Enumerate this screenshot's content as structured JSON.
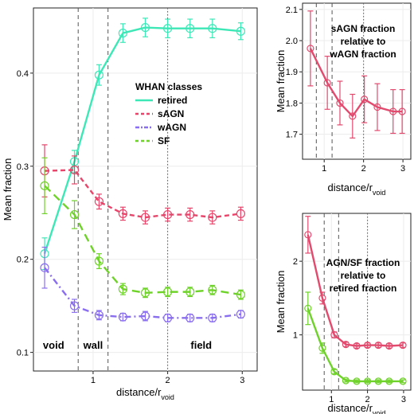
{
  "chart_data": [
    {
      "type": "line",
      "panel": "main",
      "xlabel": "distance/r",
      "xlabel_sub": "void",
      "ylabel": "Mean fraction",
      "xlim": [
        0.2,
        3.2
      ],
      "ylim": [
        0.08,
        0.47
      ],
      "xticks": [
        1,
        2,
        3
      ],
      "yticks": [
        0.1,
        0.2,
        0.3,
        0.4
      ],
      "xtick_labels": [
        "1",
        "2",
        "3"
      ],
      "ytick_labels": [
        "0.1",
        "0.2",
        "0.3",
        "0.4"
      ],
      "vlines": [
        {
          "x": 0.8,
          "style": "dashed"
        },
        {
          "x": 1.2,
          "style": "dashed"
        },
        {
          "x": 2.0,
          "style": "dotted"
        }
      ],
      "region_labels": [
        {
          "text": "void",
          "x": 0.47
        },
        {
          "text": "wall",
          "x": 1.0
        },
        {
          "text": "field",
          "x": 2.45
        }
      ],
      "legend": {
        "title": "WHAN classes",
        "placement": "center",
        "entries": [
          "retired",
          "sAGN",
          "wAGN",
          "SF"
        ]
      },
      "x": [
        0.35,
        0.75,
        1.08,
        1.4,
        1.7,
        2.0,
        2.3,
        2.6,
        2.98
      ],
      "series": [
        {
          "name": "retired",
          "color": "#3de8b6",
          "dash": "solid",
          "values": [
            0.206,
            0.305,
            0.398,
            0.443,
            0.449,
            0.448,
            0.448,
            0.448,
            0.445
          ],
          "errors": [
            0.017,
            0.012,
            0.011,
            0.01,
            0.01,
            0.01,
            0.01,
            0.01,
            0.009
          ]
        },
        {
          "name": "sAGN",
          "color": "#e8456b",
          "dash": "dashed",
          "values": [
            0.295,
            0.296,
            0.262,
            0.249,
            0.245,
            0.248,
            0.248,
            0.245,
            0.249
          ],
          "errors": [
            0.028,
            0.015,
            0.008,
            0.007,
            0.007,
            0.007,
            0.007,
            0.007,
            0.007
          ]
        },
        {
          "name": "wAGN",
          "color": "#8a6ef0",
          "dash": "dashdot",
          "values": [
            0.191,
            0.15,
            0.14,
            0.138,
            0.139,
            0.137,
            0.137,
            0.137,
            0.141
          ],
          "errors": [
            0.022,
            0.007,
            0.005,
            0.004,
            0.005,
            0.004,
            0.004,
            0.004,
            0.004
          ]
        },
        {
          "name": "SF",
          "color": "#6fd22a",
          "dash": "longdash",
          "values": [
            0.279,
            0.248,
            0.198,
            0.168,
            0.164,
            0.165,
            0.165,
            0.167,
            0.162
          ],
          "errors": [
            0.03,
            0.015,
            0.008,
            0.006,
            0.005,
            0.005,
            0.005,
            0.005,
            0.005
          ]
        }
      ]
    },
    {
      "type": "line",
      "panel": "top-right",
      "xlabel": "distance/r",
      "xlabel_sub": "void",
      "ylabel": "Mean fraction",
      "xlim": [
        0.45,
        3.2
      ],
      "ylim": [
        1.62,
        2.12
      ],
      "xticks": [
        1,
        2,
        3
      ],
      "yticks": [
        1.7,
        1.8,
        1.9,
        2.0,
        2.1
      ],
      "xtick_labels": [
        "1",
        "2",
        "3"
      ],
      "ytick_labels": [
        "1.7",
        "1.8",
        "1.9",
        "2.0",
        "2.1"
      ],
      "vlines": [
        {
          "x": 0.8,
          "style": "dashed"
        },
        {
          "x": 1.2,
          "style": "dashed"
        },
        {
          "x": 2.0,
          "style": "dotted"
        }
      ],
      "annotation": [
        "sAGN fraction",
        "relative to",
        "wAGN fraction"
      ],
      "x": [
        0.65,
        1.08,
        1.4,
        1.72,
        2.02,
        2.35,
        2.75,
        2.98
      ],
      "series": [
        {
          "name": "sAGN/wAGN",
          "color": "#e24a6e",
          "dash": "solid",
          "values": [
            1.975,
            1.865,
            1.8,
            1.758,
            1.812,
            1.787,
            1.773,
            1.773
          ],
          "errors": [
            0.12,
            0.085,
            0.07,
            0.07,
            0.075,
            0.075,
            0.07,
            0.07
          ]
        }
      ]
    },
    {
      "type": "line",
      "panel": "bottom-right",
      "xlabel": "distance/r",
      "xlabel_sub": "void",
      "ylabel": "Mean fraction",
      "xlim": [
        0.2,
        3.2
      ],
      "ylim": [
        0.25,
        2.65
      ],
      "xticks": [
        1,
        2,
        3
      ],
      "yticks": [
        1,
        2
      ],
      "xtick_labels": [
        "1",
        "2",
        "3"
      ],
      "ytick_labels": [
        "1",
        "2"
      ],
      "vlines": [
        {
          "x": 0.8,
          "style": "dashed"
        },
        {
          "x": 1.2,
          "style": "dashed"
        },
        {
          "x": 2.0,
          "style": "dotted"
        }
      ],
      "annotation": [
        "AGN/SF fraction",
        "relative to",
        "retired fraction"
      ],
      "x": [
        0.35,
        0.75,
        1.08,
        1.4,
        1.7,
        2.0,
        2.3,
        2.6,
        2.98
      ],
      "series": [
        {
          "name": "AGN/retired",
          "color": "#e24a6e",
          "dash": "solid",
          "values": [
            2.36,
            1.5,
            1.0,
            0.87,
            0.85,
            0.86,
            0.86,
            0.85,
            0.86
          ],
          "errors": [
            0.25,
            0.08,
            0.04,
            0.03,
            0.03,
            0.03,
            0.03,
            0.03,
            0.03
          ]
        },
        {
          "name": "SF/retired",
          "color": "#6fd22a",
          "dash": "solid",
          "values": [
            1.36,
            0.82,
            0.5,
            0.38,
            0.37,
            0.37,
            0.37,
            0.37,
            0.37
          ],
          "errors": [
            0.22,
            0.07,
            0.03,
            0.02,
            0.02,
            0.02,
            0.02,
            0.02,
            0.02
          ]
        }
      ]
    }
  ]
}
